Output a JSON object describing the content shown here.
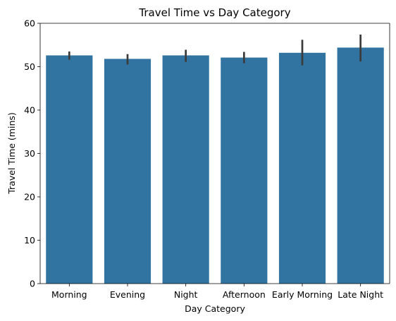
{
  "chart_data": {
    "type": "bar",
    "title": "Travel Time vs Day Category",
    "xlabel": "Day Category",
    "ylabel": "Travel Time (mins)",
    "categories": [
      "Morning",
      "Evening",
      "Night",
      "Afternoon",
      "Early Morning",
      "Late Night"
    ],
    "values": [
      52.6,
      51.8,
      52.6,
      52.1,
      53.2,
      54.4
    ],
    "error_low": [
      51.6,
      50.5,
      51.1,
      50.8,
      50.3,
      51.2
    ],
    "error_high": [
      53.5,
      52.9,
      53.9,
      53.4,
      56.2,
      57.4
    ],
    "ylim": [
      0,
      60
    ],
    "yticks": [
      0,
      10,
      20,
      30,
      40,
      50,
      60
    ],
    "grid": false,
    "bar_color": "#3274a1",
    "error_color": "#3b3b3b"
  }
}
